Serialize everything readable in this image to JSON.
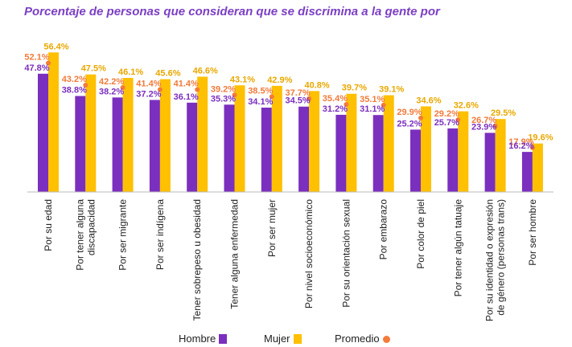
{
  "title": "Porcentaje de personas que consideran que se discrimina a la gente por",
  "chart_data": {
    "type": "bar",
    "title": "Porcentaje de personas que consideran que se discrimina a la gente por",
    "ylim": [
      0,
      60
    ],
    "grid": false,
    "legend_position": "bottom",
    "categories": [
      [
        "Por su edad"
      ],
      [
        "Por tener alguna",
        "discapacidad"
      ],
      [
        "Por ser migrante"
      ],
      [
        "Por ser indígena"
      ],
      [
        "Tener sobrepeso u obesidad"
      ],
      [
        "Tener alguna enfermedad"
      ],
      [
        "Por ser mujer"
      ],
      [
        "Por nivel socioeconómico"
      ],
      [
        "Por su orientación sexual"
      ],
      [
        "Por embarazo"
      ],
      [
        "Por color de piel"
      ],
      [
        "Por tener algún tatuaje"
      ],
      [
        "Por su identidad o expresión",
        "de género (personas trans)"
      ],
      [
        "Por ser hombre"
      ]
    ],
    "series": [
      {
        "name": "Hombre",
        "kind": "bar",
        "color": "#7b2fbe",
        "values": [
          47.8,
          38.8,
          38.2,
          37.2,
          36.1,
          35.3,
          34.1,
          34.5,
          31.2,
          31.1,
          25.2,
          25.7,
          23.9,
          16.2
        ],
        "labels": [
          "47.8%",
          "38.8%",
          "38.2%",
          "37.2%",
          "36.1%",
          "35.3%",
          "34.1%",
          "34.5%",
          "31.2%",
          "31.1%",
          "25.2%",
          "25.7%",
          "23.9%",
          "16.2%"
        ]
      },
      {
        "name": "Mujer",
        "kind": "bar",
        "color": "#ffc000",
        "values": [
          56.4,
          47.5,
          46.1,
          45.6,
          46.6,
          43.1,
          42.9,
          40.8,
          39.7,
          39.1,
          34.6,
          32.6,
          29.5,
          19.6
        ],
        "labels": [
          "56.4%",
          "47.5%",
          "46.1%",
          "45.6%",
          "46.6%",
          "43.1%",
          "42.9%",
          "40.8%",
          "39.7%",
          "39.1%",
          "34.6%",
          "32.6%",
          "29.5%",
          "19.6%"
        ]
      },
      {
        "name": "Promedio",
        "kind": "point",
        "color": "#f47b3a",
        "values": [
          52.1,
          43.2,
          42.2,
          41.4,
          41.4,
          39.2,
          38.5,
          37.7,
          35.4,
          35.1,
          29.9,
          29.2,
          26.7,
          17.9
        ],
        "labels": [
          "52.1%",
          "43.2%",
          "42.2%",
          "41.4%",
          "41.4%",
          "39.2%",
          "38.5%",
          "37.7%",
          "35.4%",
          "35.1%",
          "29.9%",
          "29.2%",
          "26.7%",
          "17.9%"
        ]
      }
    ],
    "label_colors": {
      "Hombre": "#7b2fbe",
      "Mujer": "#e8a800",
      "Promedio": "#f07b3a"
    }
  }
}
